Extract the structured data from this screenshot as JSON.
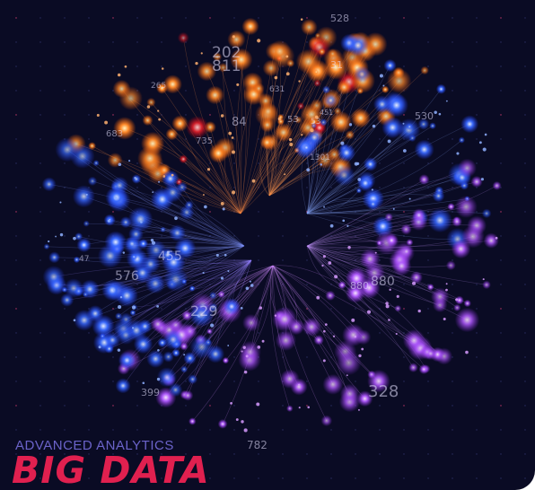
{
  "caption": {
    "subtitle": "ADVANCED ANALYTICS",
    "title": "BIG DATA"
  },
  "colors": {
    "background": "#0a0b24",
    "orange": "#ff7a1e",
    "blue": "#2f5cff",
    "violet": "#a24cff",
    "accent": "#e0204f"
  },
  "numbers": [
    "202",
    "811",
    "530",
    "53",
    "84",
    "735",
    "880",
    "455",
    "576",
    "229",
    "880",
    "328",
    "782",
    "399",
    "528",
    "31",
    "265",
    "631",
    "1301",
    "683",
    "47",
    "53",
    "451"
  ]
}
